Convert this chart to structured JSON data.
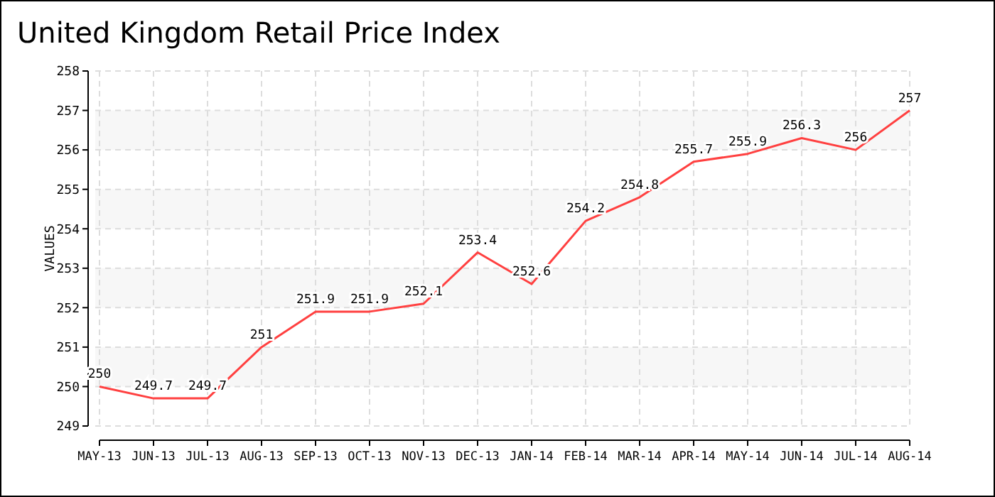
{
  "chart_data": {
    "type": "line",
    "title": "United Kingdom Retail Price Index",
    "ylabel": "VALUES",
    "categories": [
      "MAY-13",
      "JUN-13",
      "JUL-13",
      "AUG-13",
      "SEP-13",
      "OCT-13",
      "NOV-13",
      "DEC-13",
      "JAN-14",
      "FEB-14",
      "MAR-14",
      "APR-14",
      "MAY-14",
      "JUN-14",
      "JUL-14",
      "AUG-14"
    ],
    "series": [
      {
        "color": "#ff4040",
        "values": [
          250,
          249.7,
          249.7,
          251,
          251.9,
          251.9,
          252.1,
          253.4,
          252.6,
          254.2,
          254.8,
          255.7,
          255.9,
          256.3,
          256,
          257
        ]
      }
    ],
    "ylim": [
      249,
      258
    ],
    "yticks": [
      249,
      250,
      251,
      252,
      253,
      254,
      255,
      256,
      257,
      258
    ],
    "grid": true,
    "data_labels": true,
    "marker": "none",
    "line_style": "solid"
  }
}
